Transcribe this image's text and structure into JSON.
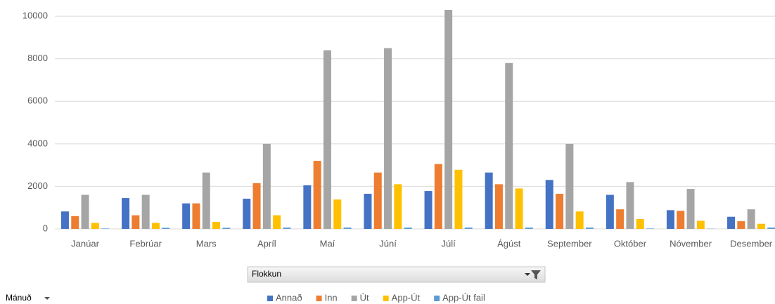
{
  "chart_data": {
    "type": "bar",
    "categories": [
      "Janúar",
      "Febrúar",
      "Mars",
      "Apríl",
      "Maí",
      "Júní",
      "Júlí",
      "Ágúst",
      "September",
      "Október",
      "Nóvember",
      "Desember"
    ],
    "series": [
      {
        "name": "Annað",
        "color": "#4472c4",
        "values": [
          820,
          1450,
          1200,
          1420,
          2050,
          1650,
          1780,
          2650,
          2300,
          1600,
          880,
          570
        ]
      },
      {
        "name": "Inn",
        "color": "#ed7d31",
        "values": [
          600,
          640,
          1200,
          2150,
          3200,
          2650,
          3050,
          2100,
          1650,
          920,
          850,
          360
        ]
      },
      {
        "name": "Út",
        "color": "#a5a5a5",
        "values": [
          1600,
          1600,
          2650,
          4000,
          8400,
          8500,
          10300,
          7800,
          4000,
          2200,
          1880,
          920
        ]
      },
      {
        "name": "App-Út",
        "color": "#ffc000",
        "values": [
          280,
          280,
          330,
          640,
          1380,
          2100,
          2780,
          1900,
          820,
          460,
          380,
          240
        ]
      },
      {
        "name": "App-Út fail",
        "color": "#5b9bd5",
        "values": [
          20,
          50,
          50,
          60,
          60,
          60,
          60,
          60,
          60,
          20,
          10,
          60
        ]
      }
    ],
    "ylim": [
      0,
      10400
    ],
    "yticks": [
      0,
      2000,
      4000,
      6000,
      8000,
      10000
    ],
    "grid": true,
    "legend": "bottom",
    "legend_field": "Flokkun",
    "axis_field": "Mánuð"
  }
}
